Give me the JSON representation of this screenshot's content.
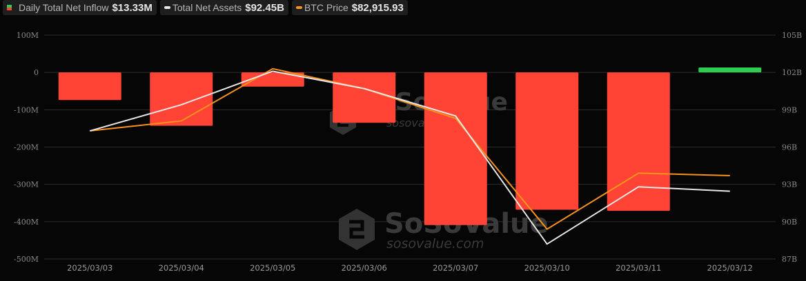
{
  "legend": {
    "inflow": {
      "label": "Daily Total Net Inflow",
      "value": "$13.33M",
      "color_pos": "#2ecc52",
      "color_neg": "#ff4436"
    },
    "assets": {
      "label": "Total Net Assets",
      "value": "$92.45B",
      "color": "#e8e8e8"
    },
    "btc": {
      "label": "BTC Price",
      "value": "$82,915.93",
      "color": "#f7931a"
    }
  },
  "watermark": {
    "brand": "SoSoValue",
    "url": "sosovalue.com"
  },
  "chart_data": {
    "type": "bar",
    "title": "",
    "categories": [
      "2025/03/03",
      "2025/03/04",
      "2025/03/05",
      "2025/03/06",
      "2025/03/07",
      "2025/03/10",
      "2025/03/11",
      "2025/03/12"
    ],
    "series": [
      {
        "name": "Daily Total Net Inflow",
        "type": "bar",
        "axis": "left",
        "unit": "USD M",
        "values": [
          -74,
          -143,
          -38,
          -135,
          -409,
          -368,
          -371,
          13.33
        ]
      },
      {
        "name": "Total Net Assets",
        "type": "line",
        "axis": "right",
        "unit": "USD B",
        "values": [
          97.3,
          99.4,
          102.1,
          100.7,
          98.5,
          88.2,
          92.8,
          92.45
        ]
      },
      {
        "name": "BTC Price",
        "type": "line",
        "axis": "right-scaled",
        "values": [
          97.3,
          98.1,
          102.3,
          100.7,
          98.3,
          89.4,
          93.9,
          93.7
        ]
      }
    ],
    "left_axis": {
      "ticks": [
        "100M",
        "0",
        "-100M",
        "-200M",
        "-300M",
        "-400M",
        "-500M"
      ],
      "values": [
        100,
        0,
        -100,
        -200,
        -300,
        -400,
        -500
      ],
      "ylim": [
        -500,
        100
      ]
    },
    "right_axis": {
      "ticks": [
        "105B",
        "102B",
        "99B",
        "96B",
        "93B",
        "90B",
        "87B"
      ],
      "values": [
        105,
        102,
        99,
        96,
        93,
        90,
        87
      ],
      "ylim": [
        87,
        105
      ]
    },
    "xlabel": "",
    "ylabel": "",
    "grid": true,
    "legend_position": "top-left"
  }
}
